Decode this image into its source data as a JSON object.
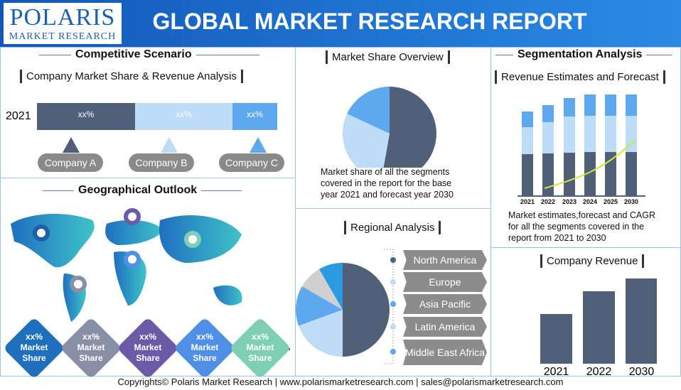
{
  "header": {
    "logo": {
      "name": "POLARIS",
      "tagline": "MARKET RESEARCH"
    },
    "title": "GLOBAL MARKET RESEARCH REPORT"
  },
  "competitive": {
    "title": "Competitive Scenario",
    "subtitle": "Company Market Share & Revenue Analysis",
    "year": "2021",
    "bars": [
      "xx%",
      "xx%",
      "xx%"
    ],
    "companies": [
      "Company A",
      "Company B",
      "Company C"
    ]
  },
  "geographical": {
    "title": "Geographical Outlook",
    "badges": [
      {
        "value": "xx%",
        "line1": "Market",
        "line2": "Share"
      },
      {
        "value": "xx%",
        "line1": "Market",
        "line2": "Share"
      },
      {
        "value": "xx%",
        "line1": "Market",
        "line2": "Share"
      },
      {
        "value": "xx%",
        "line1": "Market",
        "line2": "Share"
      },
      {
        "value": "xx%",
        "line1": "Market",
        "line2": "Share"
      }
    ]
  },
  "market_share": {
    "title": "Market Share Overview",
    "caption": "Market share of all the segments covered in the report for the base year 2021 and forecast year 2030"
  },
  "regional": {
    "title": "Regional Analysis",
    "regions": [
      "North America",
      "Europe",
      "Asia Pacific",
      "Latin America",
      "Middle East Africa"
    ]
  },
  "segmentation": {
    "title": "Segmentation Analysis",
    "subtitle": "Revenue Estimates and Forecast",
    "years": [
      "2021",
      "2022",
      "2023",
      "2024",
      "2025",
      "2030"
    ],
    "caption": "Market estimates,forecast and CAGR for all the segments covered in the report from 2021 to 2030"
  },
  "company_revenue": {
    "title": "Company Revenue",
    "years": [
      "2021",
      "2022",
      "2030"
    ]
  },
  "footer": "Copyrights© Polaris Market Research | www.polarismarketresearch.com | sales@polarismarketresearch.com"
}
